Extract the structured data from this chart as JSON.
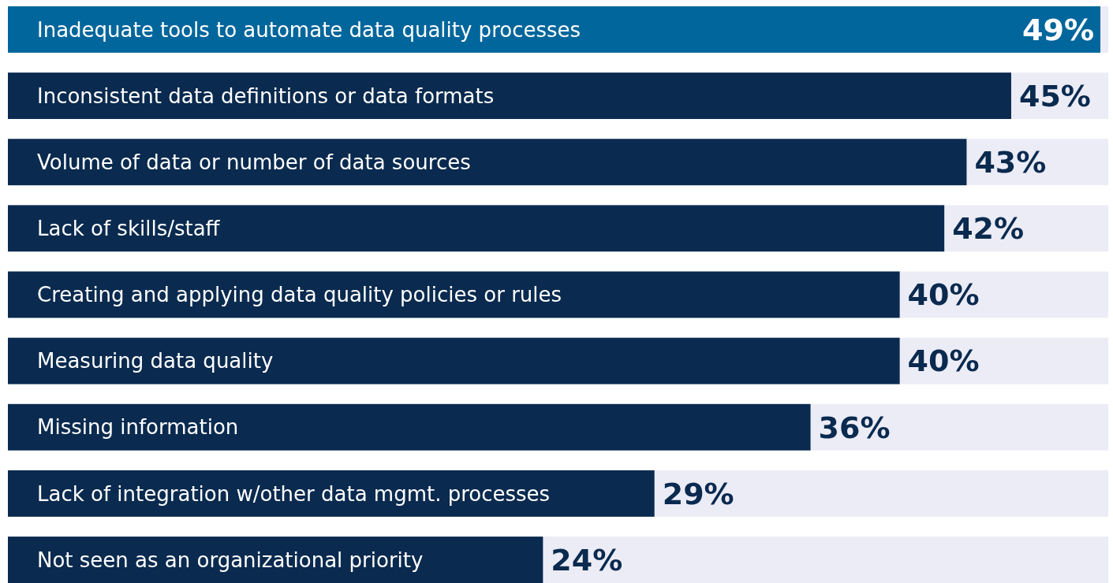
{
  "chart_data": {
    "type": "bar",
    "orientation": "horizontal",
    "categories": [
      "Inadequate tools to automate data quality processes",
      "Inconsistent data definitions or data formats",
      "Volume of data or number of data sources",
      "Lack of skills/staff",
      "Creating and applying data quality policies or rules",
      "Measuring data quality",
      "Missing information",
      "Lack of integration w/other data mgmt. processes",
      "Not seen as an organizational priority"
    ],
    "values": [
      49,
      45,
      43,
      42,
      40,
      40,
      36,
      29,
      24
    ],
    "colors": [
      "#00669b",
      "#0a2a4f",
      "#0a2a4f",
      "#0a2a4f",
      "#0a2a4f",
      "#0a2a4f",
      "#0a2a4f",
      "#0a2a4f",
      "#0a2a4f"
    ],
    "value_labels": [
      "49%",
      "45%",
      "43%",
      "42%",
      "40%",
      "40%",
      "36%",
      "29%",
      "24%"
    ],
    "xlim": [
      0,
      49
    ]
  }
}
